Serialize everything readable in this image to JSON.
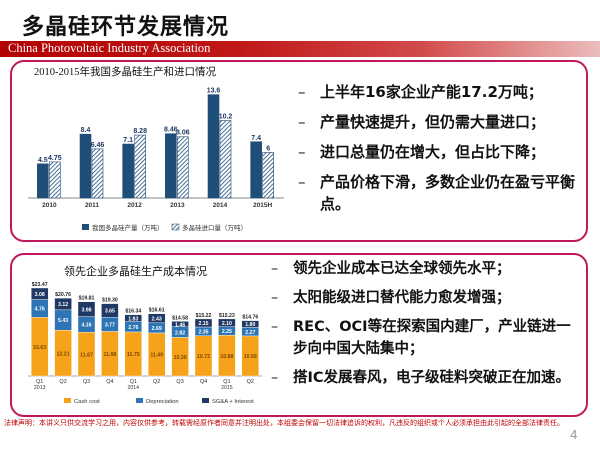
{
  "slide": {
    "title": "多晶硅环节发展情况",
    "banner_text": "China Photovoltaic Industry Association",
    "footer_disclaimer": "法律声明：本讲义只供交流学习之用，内容仅供参考，转载需经原作者同意并注明出处，本组委会保留一切法律追诉的权利，凡违反的组织或个人必须承担由此引起的全部法律责任。",
    "page_number": "4"
  },
  "colors": {
    "accent_red": "#b30000",
    "panel_border": "#c2185b",
    "bar_blue": "#1f4e79",
    "cash_cost": "#f7a21b",
    "depreciation": "#2e75b6",
    "sgna_interest": "#1f3864"
  },
  "bullets_top": [
    "上半年16家企业产能17.2万吨；",
    "产量快速提升，但仍需大量进口；",
    "进口总量仍在增大，但占比下降；",
    "产品价格下滑，多数企业仍在盈亏平衡点。"
  ],
  "bullets_bottom": [
    "领先企业成本已达全球领先水平；",
    "太阳能级进口替代能力愈发增强；",
    "REC、OCI等在探索国内建厂，产业链进一步向中国大陆集中；",
    "搭IC发展春风，电子级硅料突破正在加速。"
  ],
  "chart_data": [
    {
      "type": "bar",
      "title": "2010-2015年我国多晶硅生产和进口情况",
      "categories": [
        "2010",
        "2011",
        "2012",
        "2013",
        "2014",
        "2015H"
      ],
      "series": [
        {
          "name": "我国多晶硅产量（万吨）",
          "values": [
            4.5,
            8.4,
            7.1,
            8.46,
            13.6,
            7.4
          ],
          "color": "#1f4e79",
          "pattern": "solid"
        },
        {
          "name": "多晶硅进口量（万吨）",
          "values": [
            4.75,
            6.46,
            8.28,
            8.06,
            10.2,
            6
          ],
          "color": "#1f4e79",
          "pattern": "hatched"
        }
      ],
      "ylim": [
        0,
        15
      ],
      "legend": "bottom"
    },
    {
      "type": "bar",
      "stacked": true,
      "title": "领先企业多晶硅生产成本情况",
      "categories": [
        "Q1 2013",
        "Q2",
        "Q3",
        "Q4",
        "Q1 2014",
        "Q2",
        "Q3",
        "Q4",
        "Q1 2015",
        "Q2"
      ],
      "category_labels_line1": [
        "Q1",
        "Q2",
        "Q3",
        "Q4",
        "Q1",
        "Q2",
        "Q3",
        "Q4",
        "Q1",
        "Q2"
      ],
      "category_labels_line2": [
        "2013",
        "",
        "",
        "",
        "2014",
        "",
        "",
        "",
        "2015",
        ""
      ],
      "totals": [
        "$23.47",
        "$20.76",
        "$19.81",
        "$19.30",
        "$16.34",
        "$16.61",
        "$14.58",
        "$15.22",
        "$15.23",
        "$14.76"
      ],
      "series": [
        {
          "name": "Cash cost",
          "values": [
            15.63,
            12.21,
            11.67,
            11.88,
            11.75,
            11.49,
            10.3,
            10.72,
            10.88,
            10.69
          ],
          "color": "#f7a21b"
        },
        {
          "name": "Depreciation",
          "values": [
            4.76,
            5.43,
            4.16,
            3.77,
            2.76,
            2.69,
            2.82,
            2.35,
            2.25,
            2.27
          ],
          "color": "#2e75b6"
        },
        {
          "name": "SG&A + Interest",
          "values": [
            3.08,
            3.12,
            3.98,
            3.65,
            1.83,
            2.43,
            1.46,
            2.15,
            2.1,
            1.8
          ],
          "color": "#1f3864"
        }
      ],
      "legend": "bottom"
    }
  ]
}
